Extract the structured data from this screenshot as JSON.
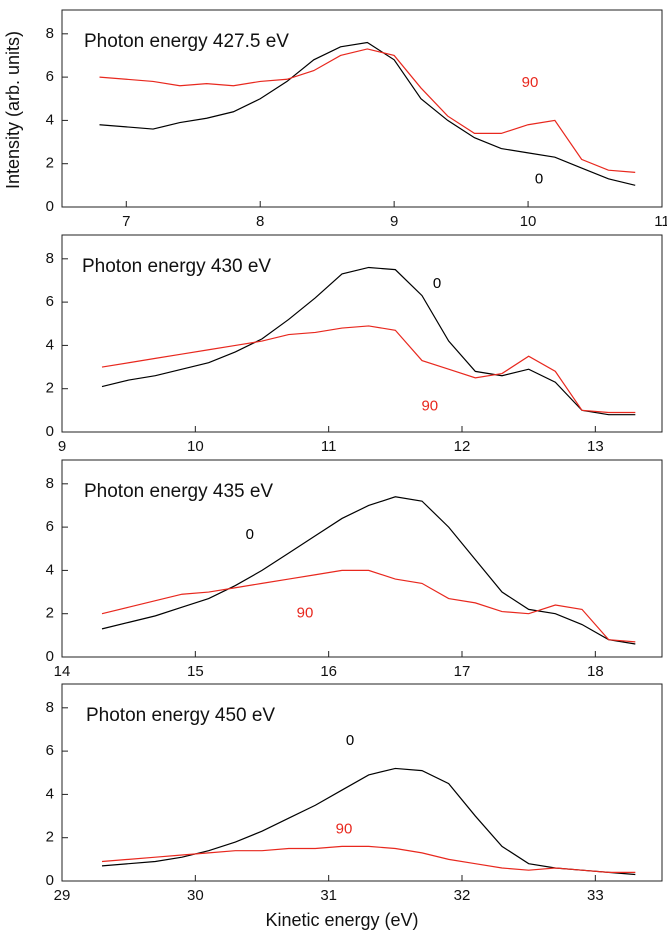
{
  "chart_data": [
    {
      "type": "line",
      "title": "Photon energy 427.5 eV",
      "ylabel": "Intensity (arb. units)",
      "x": [
        6.8,
        7.0,
        7.2,
        7.4,
        7.6,
        7.8,
        8.0,
        8.2,
        8.4,
        8.6,
        8.8,
        9.0,
        9.2,
        9.4,
        9.6,
        9.8,
        10.0,
        10.2,
        10.4,
        10.6,
        10.8
      ],
      "series": [
        {
          "name": "0",
          "color": "#000000",
          "values": [
            3.8,
            3.7,
            3.6,
            3.9,
            4.1,
            4.4,
            5.0,
            5.8,
            6.8,
            7.4,
            7.6,
            6.8,
            5.0,
            4.0,
            3.2,
            2.7,
            2.5,
            2.3,
            1.8,
            1.3,
            1.0
          ]
        },
        {
          "name": "90",
          "color": "#e8281e",
          "values": [
            6.0,
            5.9,
            5.8,
            5.6,
            5.7,
            5.6,
            5.8,
            5.9,
            6.3,
            7.0,
            7.3,
            7.0,
            5.5,
            4.2,
            3.4,
            3.4,
            3.8,
            4.0,
            2.2,
            1.7,
            1.6
          ]
        }
      ],
      "xlim": [
        6.52,
        11
      ],
      "ylim": [
        0,
        9.1
      ],
      "xticks": [
        7,
        8,
        9,
        10,
        11
      ],
      "yticks": [
        0,
        2,
        4,
        6,
        8
      ]
    },
    {
      "type": "line",
      "title": "Photon energy 430 eV",
      "x": [
        9.3,
        9.5,
        9.7,
        9.9,
        10.1,
        10.3,
        10.5,
        10.7,
        10.9,
        11.1,
        11.3,
        11.5,
        11.7,
        11.9,
        12.1,
        12.3,
        12.5,
        12.7,
        12.9,
        13.1,
        13.3
      ],
      "series": [
        {
          "name": "0",
          "color": "#000000",
          "values": [
            2.1,
            2.4,
            2.6,
            2.9,
            3.2,
            3.7,
            4.3,
            5.2,
            6.2,
            7.3,
            7.6,
            7.5,
            6.3,
            4.2,
            2.8,
            2.6,
            2.9,
            2.3,
            1.0,
            0.8,
            0.8
          ]
        },
        {
          "name": "90",
          "color": "#e8281e",
          "values": [
            3.0,
            3.2,
            3.4,
            3.6,
            3.8,
            4.0,
            4.2,
            4.5,
            4.6,
            4.8,
            4.9,
            4.7,
            3.3,
            2.9,
            2.5,
            2.7,
            3.5,
            2.8,
            1.0,
            0.9,
            0.9
          ]
        }
      ],
      "xlim": [
        9,
        13.5
      ],
      "ylim": [
        0,
        9.1
      ],
      "xticks": [
        9,
        10,
        11,
        12,
        13
      ],
      "yticks": [
        0,
        2,
        4,
        6,
        8
      ]
    },
    {
      "type": "line",
      "title": "Photon energy 435 eV",
      "x": [
        14.3,
        14.5,
        14.7,
        14.9,
        15.1,
        15.3,
        15.5,
        15.7,
        15.9,
        16.1,
        16.3,
        16.5,
        16.7,
        16.9,
        17.1,
        17.3,
        17.5,
        17.7,
        17.9,
        18.1,
        18.3
      ],
      "series": [
        {
          "name": "0",
          "color": "#000000",
          "values": [
            1.3,
            1.6,
            1.9,
            2.3,
            2.7,
            3.3,
            4.0,
            4.8,
            5.6,
            6.4,
            7.0,
            7.4,
            7.2,
            6.0,
            4.5,
            3.0,
            2.2,
            2.0,
            1.5,
            0.8,
            0.6
          ]
        },
        {
          "name": "90",
          "color": "#e8281e",
          "values": [
            2.0,
            2.3,
            2.6,
            2.9,
            3.0,
            3.2,
            3.4,
            3.6,
            3.8,
            4.0,
            4.0,
            3.6,
            3.4,
            2.7,
            2.5,
            2.1,
            2.0,
            2.4,
            2.2,
            0.8,
            0.7
          ]
        }
      ],
      "xlim": [
        14,
        18.5
      ],
      "ylim": [
        0,
        9.1
      ],
      "xticks": [
        14,
        15,
        16,
        17,
        18
      ],
      "yticks": [
        0,
        2,
        4,
        6,
        8
      ]
    },
    {
      "type": "line",
      "title": "Photon energy 450 eV",
      "xlabel": "Kinetic energy (eV)",
      "x": [
        29.3,
        29.5,
        29.7,
        29.9,
        30.1,
        30.3,
        30.5,
        30.7,
        30.9,
        31.1,
        31.3,
        31.5,
        31.7,
        31.9,
        32.1,
        32.3,
        32.5,
        32.7,
        32.9,
        33.1,
        33.3
      ],
      "series": [
        {
          "name": "0",
          "color": "#000000",
          "values": [
            0.7,
            0.8,
            0.9,
            1.1,
            1.4,
            1.8,
            2.3,
            2.9,
            3.5,
            4.2,
            4.9,
            5.2,
            5.1,
            4.5,
            3.0,
            1.6,
            0.8,
            0.6,
            0.5,
            0.4,
            0.3
          ]
        },
        {
          "name": "90",
          "color": "#e8281e",
          "values": [
            0.9,
            1.0,
            1.1,
            1.2,
            1.3,
            1.4,
            1.4,
            1.5,
            1.5,
            1.6,
            1.6,
            1.5,
            1.3,
            1.0,
            0.8,
            0.6,
            0.5,
            0.6,
            0.5,
            0.4,
            0.4
          ]
        }
      ],
      "xlim": [
        29,
        33.5
      ],
      "ylim": [
        0,
        9.1
      ],
      "xticks": [
        29,
        30,
        31,
        32,
        33
      ],
      "yticks": [
        0,
        2,
        4,
        6,
        8
      ]
    }
  ]
}
